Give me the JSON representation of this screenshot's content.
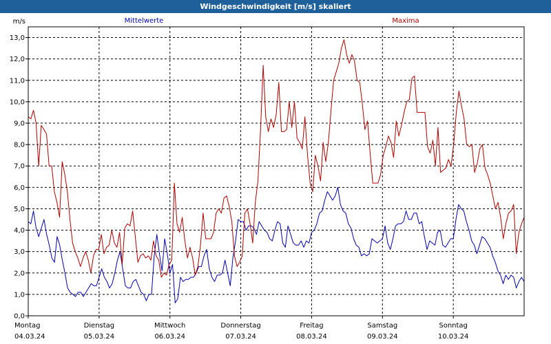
{
  "window": {
    "title": "Windgeschwindigkeit [m/s] skaliert"
  },
  "chart_data": {
    "type": "line",
    "unit": "m/s",
    "ylim": [
      0,
      13.5
    ],
    "yticks": [
      "0,0",
      "1,0",
      "2,0",
      "3,0",
      "4,0",
      "5,0",
      "6,0",
      "7,0",
      "8,0",
      "9,0",
      "10,0",
      "11,0",
      "12,0",
      "13,0"
    ],
    "xlim": [
      0,
      7
    ],
    "days": [
      {
        "name": "Montag",
        "date": "04.03.24"
      },
      {
        "name": "Dienstag",
        "date": "05.03.24"
      },
      {
        "name": "Mittwoch",
        "date": "06.03.24"
      },
      {
        "name": "Donnerstag",
        "date": "07.03.24"
      },
      {
        "name": "Freitag",
        "date": "08.03.24"
      },
      {
        "name": "Samstag",
        "date": "09.03.24"
      },
      {
        "name": "Sonntag",
        "date": "10.03.24"
      }
    ],
    "grid": true,
    "series": [
      {
        "name": "Mittelwerte",
        "color": "#0000aa",
        "values": [
          4.4,
          4.3,
          4.9,
          4.1,
          3.7,
          4.1,
          4.5,
          3.8,
          3.3,
          2.7,
          2.5,
          3.7,
          3.3,
          2.6,
          2.0,
          1.3,
          1.1,
          1.0,
          0.9,
          1.1,
          1.1,
          0.9,
          1.1,
          1.3,
          1.5,
          1.4,
          1.4,
          1.8,
          2.2,
          1.8,
          1.6,
          1.3,
          1.5,
          2.0,
          2.6,
          3.0,
          2.2,
          1.4,
          1.3,
          1.3,
          1.6,
          1.7,
          1.4,
          1.1,
          1.0,
          0.7,
          1.0,
          1.0,
          2.8,
          3.8,
          2.9,
          2.1,
          3.6,
          2.9,
          2.0,
          2.4,
          0.6,
          0.8,
          1.8,
          1.6,
          1.7,
          1.7,
          1.8,
          1.8,
          2.0,
          2.3,
          2.3,
          2.8,
          3.1,
          2.2,
          1.8,
          1.6,
          1.9,
          1.9,
          2.0,
          2.6,
          2.0,
          1.4,
          2.7,
          3.5,
          4.5,
          4.4,
          4.4,
          4.0,
          4.2,
          4.2,
          4.1,
          3.8,
          4.4,
          4.2,
          4.0,
          3.9,
          3.6,
          3.5,
          4.0,
          4.4,
          4.3,
          3.4,
          3.2,
          4.2,
          3.8,
          3.4,
          3.3,
          3.3,
          3.5,
          3.2,
          3.5,
          3.4,
          3.9,
          4.0,
          4.3,
          4.8,
          4.9,
          5.4,
          5.8,
          5.6,
          5.4,
          5.6,
          6.0,
          5.2,
          4.9,
          4.8,
          4.3,
          4.1,
          3.6,
          3.3,
          3.2,
          2.8,
          2.9,
          2.8,
          2.9,
          3.6,
          3.5,
          3.4,
          3.5,
          3.6,
          4.2,
          3.4,
          3.1,
          3.6,
          4.2,
          4.3,
          4.3,
          4.4,
          4.9,
          4.5,
          4.5,
          4.8,
          4.8,
          4.3,
          4.4,
          3.7,
          3.1,
          3.5,
          3.4,
          3.3,
          3.9,
          4.0,
          3.3,
          3.2,
          3.4,
          3.6,
          3.6,
          4.5,
          5.2,
          5.0,
          4.9,
          4.4,
          4.0,
          3.5,
          3.3,
          2.9,
          3.3,
          3.7,
          3.6,
          3.4,
          3.2,
          2.8,
          2.5,
          2.1,
          1.9,
          1.5,
          1.9,
          1.7,
          1.9,
          1.8,
          1.3,
          1.6,
          1.8,
          1.6
        ]
      },
      {
        "name": "Maxima",
        "color": "#aa0000",
        "values": [
          9.3,
          9.2,
          9.6,
          9.0,
          7.0,
          8.9,
          8.7,
          8.5,
          7.0,
          7.0,
          5.8,
          5.3,
          4.6,
          7.2,
          6.6,
          5.8,
          4.5,
          3.4,
          3.0,
          2.7,
          2.3,
          2.7,
          3.0,
          2.6,
          2.0,
          2.8,
          3.1,
          3.1,
          3.8,
          2.9,
          3.2,
          3.3,
          4.0,
          3.4,
          3.2,
          3.9,
          2.4,
          4.1,
          4.3,
          4.2,
          4.9,
          3.7,
          2.5,
          2.8,
          2.9,
          2.7,
          2.8,
          2.6,
          3.5,
          2.8,
          2.6,
          1.8,
          2.0,
          1.9,
          2.4,
          2.6,
          6.2,
          4.3,
          3.9,
          4.6,
          3.5,
          2.7,
          3.2,
          2.7,
          1.9,
          2.3,
          3.3,
          4.8,
          3.6,
          3.6,
          3.6,
          3.9,
          4.8,
          5.0,
          4.8,
          5.5,
          5.6,
          5.1,
          4.4,
          2.8,
          2.3,
          2.5,
          2.8,
          4.8,
          5.0,
          4.3,
          3.4,
          5.3,
          6.3,
          8.7,
          11.7,
          9.3,
          8.6,
          9.2,
          8.8,
          9.4,
          10.9,
          8.6,
          8.6,
          8.7,
          10.0,
          8.8,
          10.0,
          8.3,
          8.1,
          7.8,
          9.3,
          7.5,
          6.2,
          5.8,
          7.5,
          7.0,
          6.3,
          8.1,
          7.2,
          8.1,
          9.6,
          11.0,
          11.4,
          11.8,
          12.5,
          12.9,
          12.2,
          11.8,
          12.2,
          11.9,
          11.0,
          10.9,
          9.9,
          8.7,
          9.1,
          7.6,
          6.2,
          6.2,
          6.2,
          6.6,
          7.5,
          7.9,
          8.4,
          8.1,
          7.4,
          9.1,
          8.4,
          8.9,
          9.5,
          10.0,
          10.1,
          11.1,
          11.2,
          9.5,
          9.5,
          9.5,
          9.5,
          7.9,
          7.6,
          8.2,
          7.0,
          8.8,
          6.7,
          6.8,
          6.9,
          7.3,
          7.0,
          8.0,
          9.5,
          10.5,
          9.8,
          9.2,
          8.0,
          7.9,
          8.0,
          6.7,
          7.1,
          7.8,
          8.0,
          6.9,
          6.6,
          6.2,
          5.6,
          5.0,
          5.3,
          4.6,
          3.6,
          4.3,
          4.8,
          4.9,
          5.2,
          2.9,
          3.9,
          4.3,
          4.6
        ]
      }
    ]
  }
}
